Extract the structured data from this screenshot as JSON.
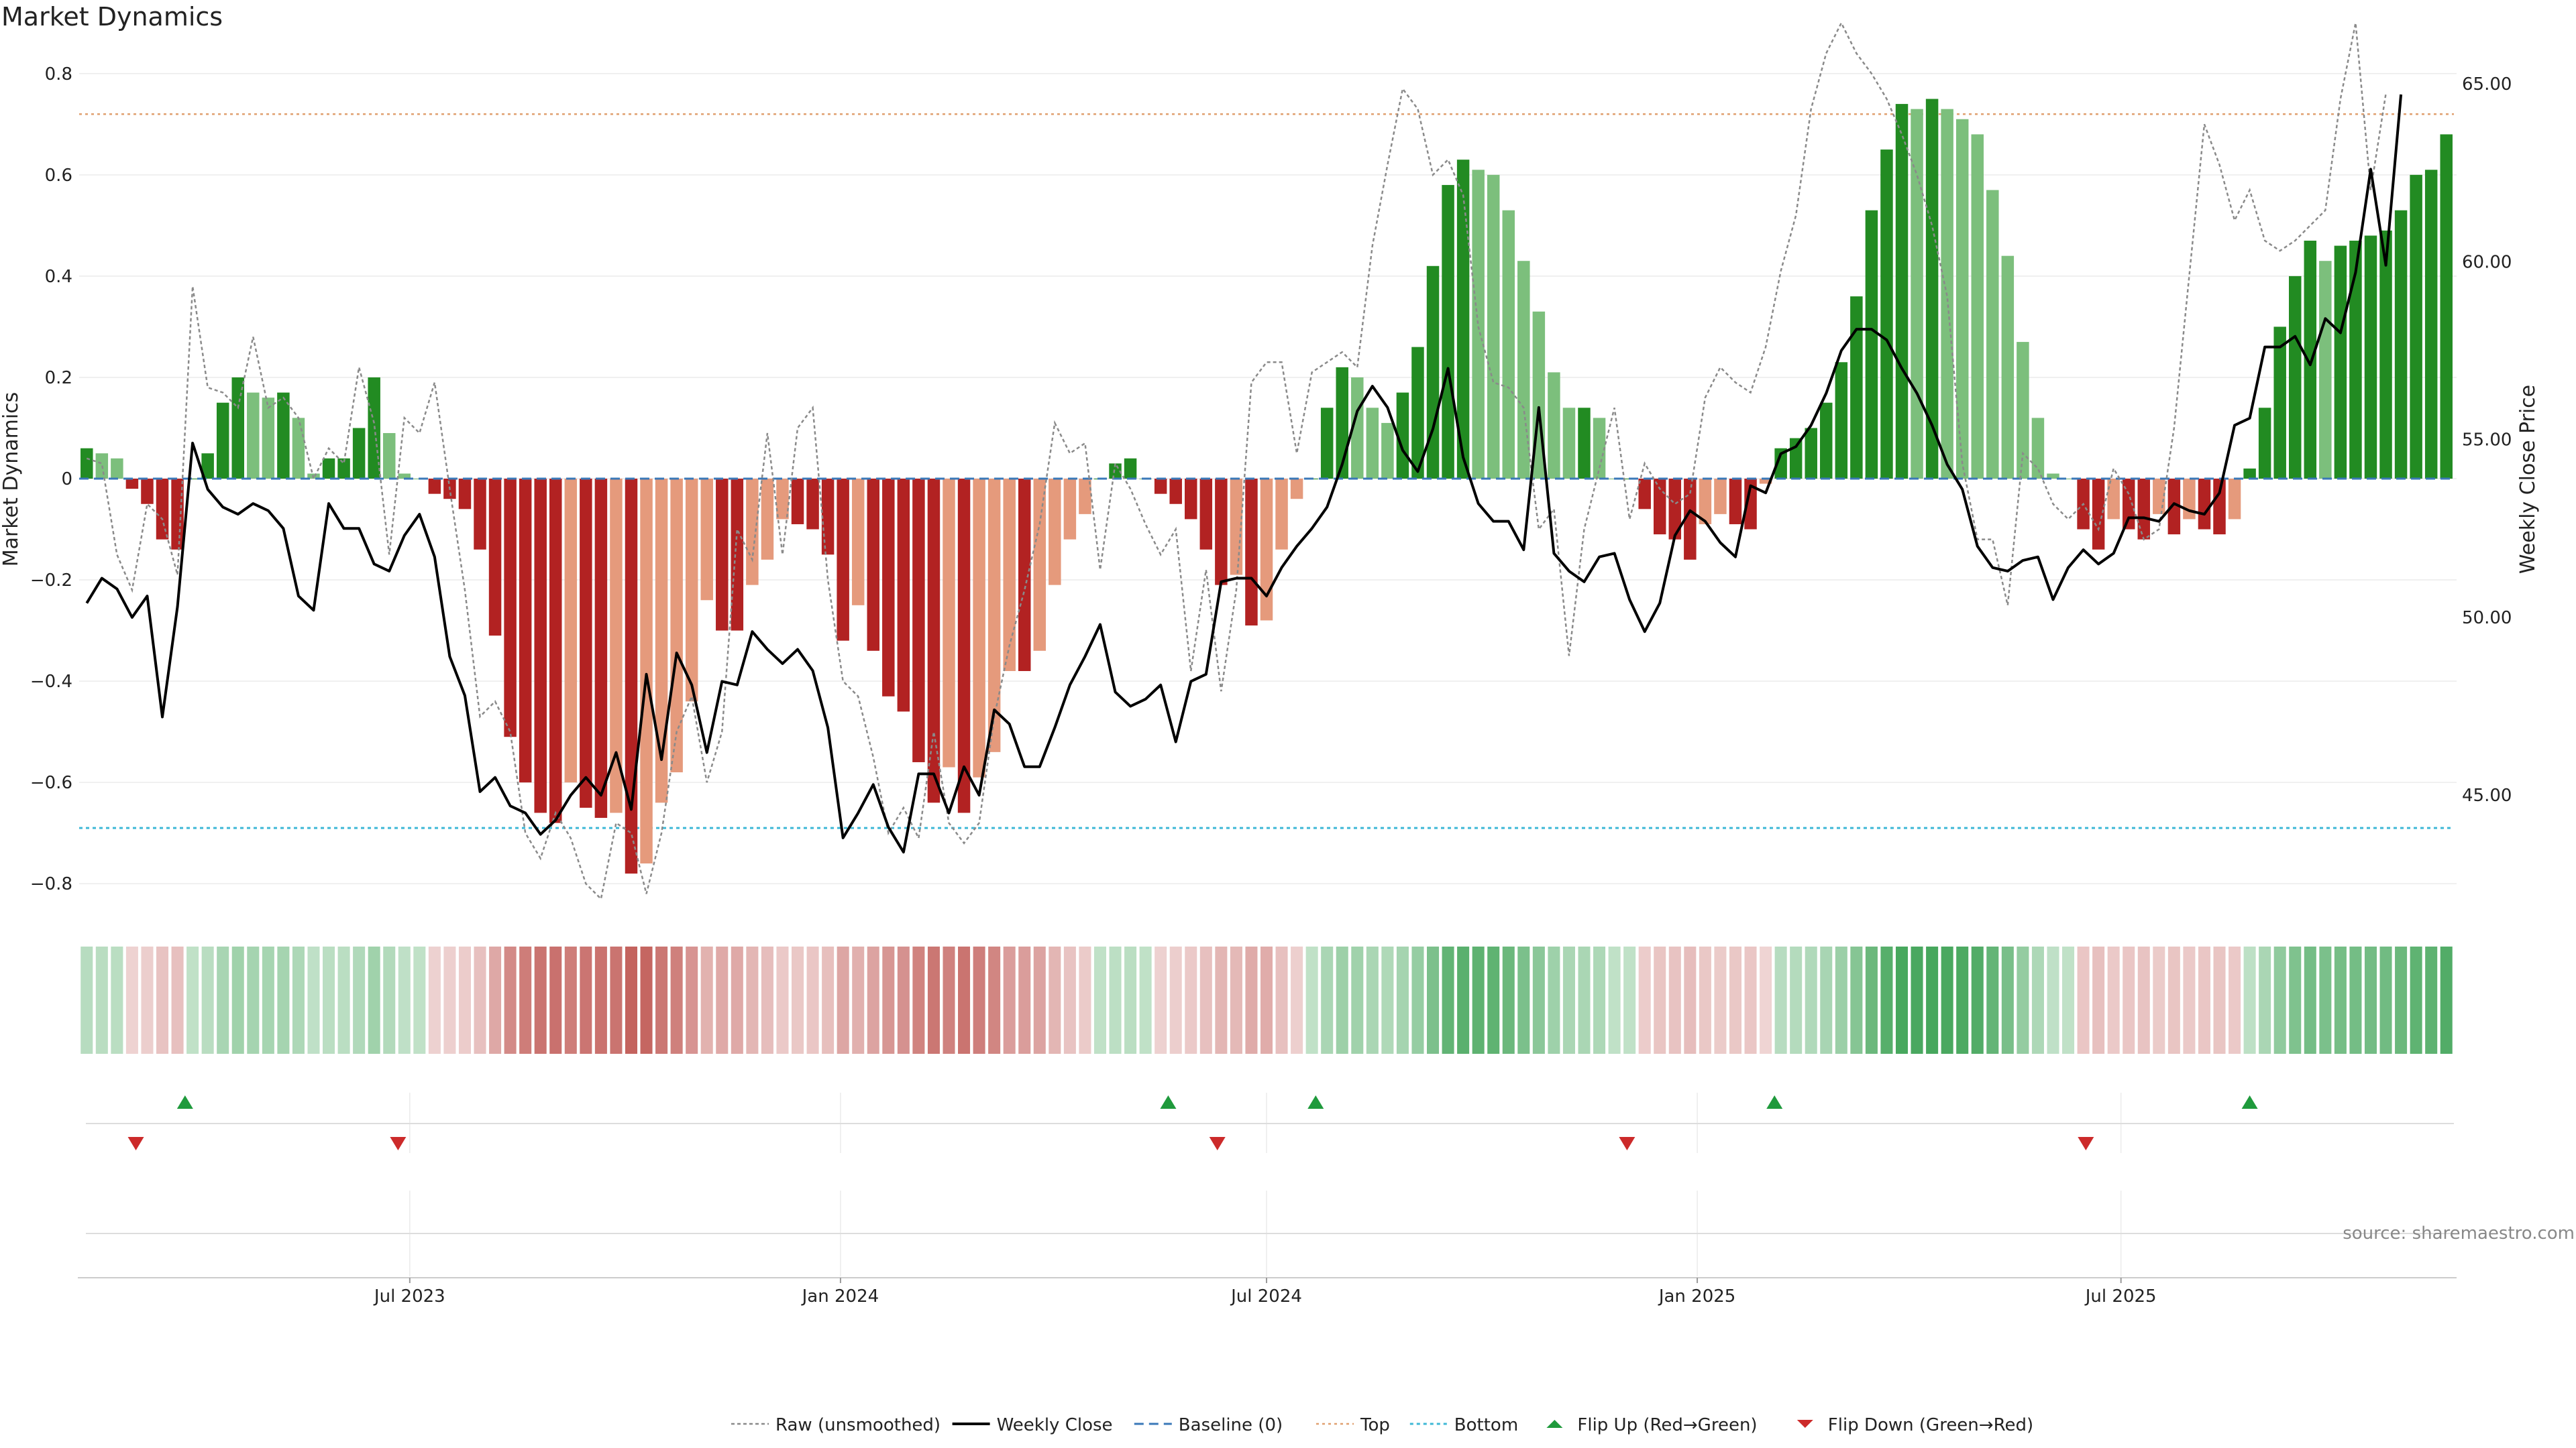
{
  "chart_data": {
    "type": "bar",
    "title": "Market Dynamics",
    "ylabel_left": "Market Dynamics",
    "ylabel_right": "Weekly Close Price",
    "ylim_left": [
      -0.85,
      0.85
    ],
    "ylim_right": [
      41.8,
      66.0
    ],
    "yticks_left": [
      0.8,
      0.6,
      0.4,
      0.2,
      0,
      -0.2,
      -0.4,
      -0.6,
      -0.8
    ],
    "yticks_left_labels": [
      "0.8",
      "0.6",
      "0.4",
      "0.2",
      "0",
      "−0.2",
      "−0.4",
      "−0.6",
      "−0.8"
    ],
    "yticks_right": [
      65,
      60,
      55,
      50,
      45
    ],
    "yticks_right_labels": [
      "65.00",
      "60.00",
      "55.00",
      "50.00",
      "45.00"
    ],
    "x_start": "2023-02-13",
    "x_end": "2025-11-17",
    "x_ticks": [
      {
        "label": "Jul 2023",
        "date": "2023-07-01"
      },
      {
        "label": "Jan 2024",
        "date": "2024-01-01"
      },
      {
        "label": "Jul 2024",
        "date": "2024-07-01"
      },
      {
        "label": "Jan 2025",
        "date": "2025-01-01"
      },
      {
        "label": "Jul 2025",
        "date": "2025-07-01"
      }
    ],
    "top_level": 0.72,
    "bottom_level": -0.69,
    "baseline": 0,
    "bars": [
      0.06,
      0.05,
      0.04,
      -0.02,
      -0.05,
      -0.12,
      -0.14,
      0.0,
      0.05,
      0.15,
      0.2,
      0.17,
      0.16,
      0.17,
      0.12,
      0.01,
      0.04,
      0.04,
      0.1,
      0.2,
      0.09,
      0.01,
      0.0,
      -0.03,
      -0.04,
      -0.06,
      -0.14,
      -0.31,
      -0.51,
      -0.6,
      -0.66,
      -0.68,
      -0.6,
      -0.65,
      -0.67,
      -0.66,
      -0.78,
      -0.76,
      -0.64,
      -0.58,
      -0.44,
      -0.24,
      -0.3,
      -0.3,
      -0.21,
      -0.16,
      -0.08,
      -0.09,
      -0.1,
      -0.15,
      -0.32,
      -0.25,
      -0.34,
      -0.43,
      -0.46,
      -0.56,
      -0.64,
      -0.57,
      -0.66,
      -0.59,
      -0.54,
      -0.38,
      -0.38,
      -0.34,
      -0.21,
      -0.12,
      -0.07,
      0.0,
      0.03,
      0.04,
      0.0,
      -0.03,
      -0.05,
      -0.08,
      -0.14,
      -0.21,
      -0.19,
      -0.29,
      -0.28,
      -0.14,
      -0.04,
      0.0,
      0.14,
      0.22,
      0.2,
      0.14,
      0.11,
      0.17,
      0.26,
      0.42,
      0.58,
      0.63,
      0.61,
      0.6,
      0.53,
      0.43,
      0.33,
      0.21,
      0.14,
      0.14,
      0.12,
      0.0,
      0.0,
      -0.06,
      -0.11,
      -0.12,
      -0.16,
      -0.09,
      -0.07,
      -0.09,
      -0.1,
      -0.01,
      0.06,
      0.08,
      0.1,
      0.15,
      0.23,
      0.36,
      0.53,
      0.65,
      0.74,
      0.73,
      0.75,
      0.73,
      0.71,
      0.68,
      0.57,
      0.44,
      0.27,
      0.12,
      0.01,
      0.0,
      -0.1,
      -0.14,
      -0.08,
      -0.1,
      -0.12,
      -0.07,
      -0.11,
      -0.08,
      -0.1,
      -0.11,
      -0.08,
      0.02,
      0.14,
      0.3,
      0.4,
      0.47,
      0.43,
      0.46,
      0.47,
      0.48,
      0.49,
      0.53,
      0.6,
      0.61,
      0.68
    ],
    "bar_colors": {
      "green_dark": "#228b22",
      "green_light": "#7cbf7c",
      "red_dark": "#b22222",
      "red_light": "#e59a7c"
    },
    "raw": [
      0.04,
      0.03,
      -0.15,
      -0.22,
      -0.05,
      -0.08,
      -0.19,
      0.38,
      0.18,
      0.17,
      0.14,
      0.28,
      0.14,
      0.16,
      0.12,
      0.0,
      0.06,
      0.03,
      0.22,
      0.11,
      -0.15,
      0.12,
      0.09,
      0.19,
      -0.02,
      -0.22,
      -0.47,
      -0.44,
      -0.5,
      -0.7,
      -0.75,
      -0.66,
      -0.71,
      -0.8,
      -0.83,
      -0.68,
      -0.7,
      -0.82,
      -0.7,
      -0.5,
      -0.43,
      -0.6,
      -0.5,
      -0.1,
      -0.16,
      0.09,
      -0.15,
      0.1,
      0.14,
      -0.2,
      -0.4,
      -0.43,
      -0.55,
      -0.7,
      -0.65,
      -0.71,
      -0.5,
      -0.68,
      -0.72,
      -0.68,
      -0.47,
      -0.33,
      -0.22,
      -0.09,
      0.11,
      0.05,
      0.07,
      -0.18,
      0.03,
      -0.02,
      -0.09,
      -0.15,
      -0.1,
      -0.38,
      -0.18,
      -0.42,
      -0.22,
      0.19,
      0.23,
      0.23,
      0.05,
      0.21,
      0.23,
      0.25,
      0.22,
      0.46,
      0.62,
      0.77,
      0.73,
      0.6,
      0.63,
      0.56,
      0.3,
      0.19,
      0.18,
      0.14,
      -0.1,
      -0.06,
      -0.35,
      -0.1,
      0.02,
      0.14,
      -0.08,
      0.03,
      -0.02,
      -0.05,
      -0.03,
      0.16,
      0.22,
      0.19,
      0.17,
      0.26,
      0.41,
      0.52,
      0.73,
      0.84,
      0.9,
      0.84,
      0.8,
      0.75,
      0.68,
      0.6,
      0.5,
      0.36,
      0.03,
      -0.12,
      -0.12,
      -0.25,
      0.05,
      0.02,
      -0.05,
      -0.08,
      -0.05,
      -0.1,
      0.02,
      -0.03,
      -0.12,
      -0.1,
      0.1,
      0.4,
      0.7,
      0.62,
      0.51,
      0.57,
      0.47,
      0.45,
      0.47,
      0.5,
      0.53,
      0.75,
      0.9,
      0.57,
      0.76
    ],
    "close": [
      50.4,
      51.1,
      50.8,
      50.0,
      50.6,
      47.2,
      50.3,
      54.9,
      53.6,
      53.1,
      52.9,
      53.2,
      53.0,
      52.5,
      50.6,
      50.2,
      53.2,
      52.5,
      52.5,
      51.5,
      51.3,
      52.3,
      52.9,
      51.7,
      48.9,
      47.8,
      45.1,
      45.5,
      44.7,
      44.5,
      43.9,
      44.3,
      45.0,
      45.5,
      45.0,
      46.2,
      44.6,
      48.4,
      46.0,
      49.0,
      48.1,
      46.2,
      48.2,
      48.1,
      49.6,
      49.1,
      48.7,
      49.1,
      48.5,
      46.9,
      43.8,
      44.5,
      45.3,
      44.1,
      43.4,
      45.6,
      45.6,
      44.5,
      45.8,
      45.0,
      47.4,
      47.0,
      45.8,
      45.8,
      46.9,
      48.1,
      48.9,
      49.8,
      47.9,
      47.5,
      47.7,
      48.1,
      46.5,
      48.2,
      48.4,
      51.0,
      51.1,
      51.1,
      50.6,
      51.4,
      52.0,
      52.5,
      53.1,
      54.3,
      55.8,
      56.5,
      55.9,
      54.7,
      54.1,
      55.3,
      57.0,
      54.5,
      53.2,
      52.7,
      52.7,
      51.9,
      55.9,
      51.8,
      51.3,
      51.0,
      51.7,
      51.8,
      50.5,
      49.6,
      50.4,
      52.3,
      53.0,
      52.7,
      52.1,
      51.7,
      53.7,
      53.5,
      54.6,
      54.8,
      55.4,
      56.3,
      57.5,
      58.1,
      58.1,
      57.8,
      57.0,
      56.3,
      55.4,
      54.3,
      53.6,
      52.0,
      51.4,
      51.3,
      51.6,
      51.7,
      50.5,
      51.4,
      51.9,
      51.5,
      51.8,
      52.8,
      52.8,
      52.7,
      53.2,
      53.0,
      52.9,
      53.5,
      55.4,
      55.6,
      57.6,
      57.6,
      57.9,
      57.1,
      58.4,
      58.0,
      59.7,
      62.6,
      59.9,
      64.7
    ],
    "flip_up_dates": [
      "2023-03-27",
      "2024-05-20",
      "2024-07-22",
      "2025-02-03",
      "2025-08-25"
    ],
    "flip_down_dates": [
      "2023-03-06",
      "2023-06-26",
      "2024-06-10",
      "2024-12-02",
      "2025-06-16"
    ],
    "heat_colors": {
      "green": "#2e9b47",
      "red": "#b7413c"
    },
    "legend": [
      {
        "label": "Raw (unsmoothed)",
        "style": "dotted-gray"
      },
      {
        "label": "Weekly Close",
        "style": "solid-black"
      },
      {
        "label": "Baseline (0)",
        "style": "dashed-blue"
      },
      {
        "label": "Top",
        "style": "dotted-orange"
      },
      {
        "label": "Bottom",
        "style": "dotted-cyan"
      },
      {
        "label": "Flip Up (Red→Green)",
        "style": "triangle-up-green"
      },
      {
        "label": "Flip Down (Green→Red)",
        "style": "triangle-down-red"
      }
    ],
    "source": "source: sharemaestro.com"
  }
}
